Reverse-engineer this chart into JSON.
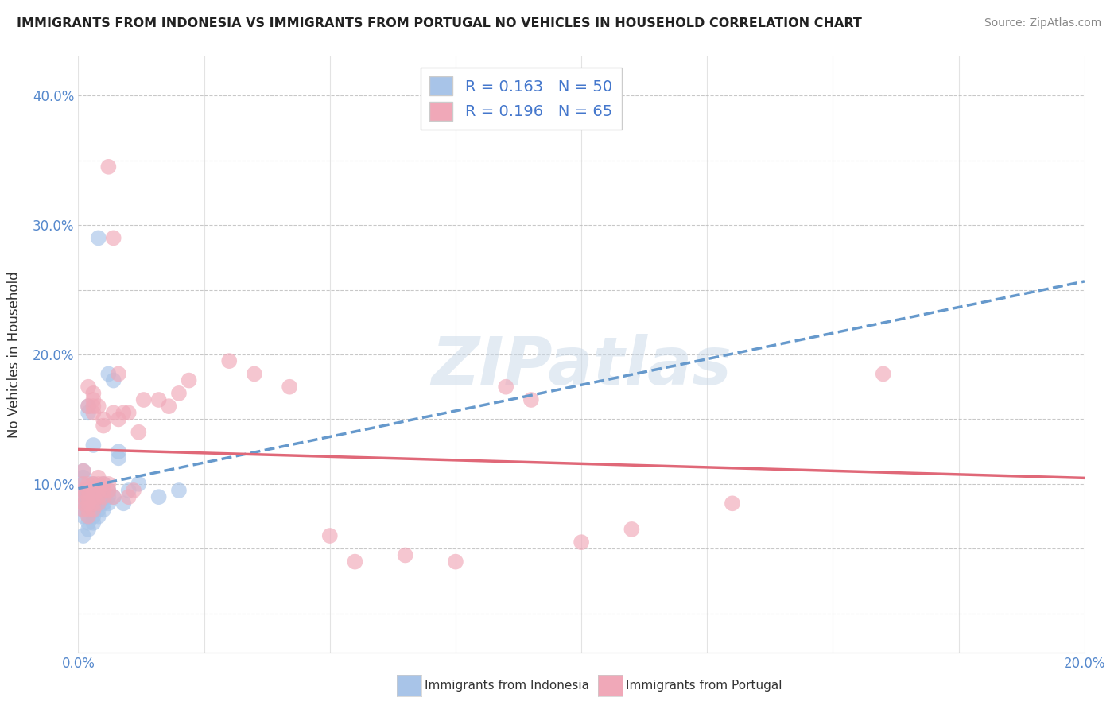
{
  "title": "IMMIGRANTS FROM INDONESIA VS IMMIGRANTS FROM PORTUGAL NO VEHICLES IN HOUSEHOLD CORRELATION CHART",
  "source": "Source: ZipAtlas.com",
  "ylabel": "No Vehicles in Household",
  "xlim": [
    0.0,
    0.2
  ],
  "ylim": [
    -0.03,
    0.43
  ],
  "indonesia_color": "#a8c4e8",
  "portugal_color": "#f0a8b8",
  "indonesia_line_color": "#6699cc",
  "portugal_line_color": "#e06878",
  "indonesia_R": 0.163,
  "indonesia_N": 50,
  "portugal_R": 0.196,
  "portugal_N": 65,
  "legend_label_indonesia": "Immigrants from Indonesia",
  "legend_label_portugal": "Immigrants from Portugal",
  "background_color": "#ffffff",
  "indonesia_scatter": [
    [
      0.001,
      0.06
    ],
    [
      0.001,
      0.075
    ],
    [
      0.001,
      0.08
    ],
    [
      0.001,
      0.085
    ],
    [
      0.001,
      0.09
    ],
    [
      0.001,
      0.095
    ],
    [
      0.001,
      0.1
    ],
    [
      0.001,
      0.105
    ],
    [
      0.001,
      0.11
    ],
    [
      0.002,
      0.065
    ],
    [
      0.002,
      0.07
    ],
    [
      0.002,
      0.075
    ],
    [
      0.002,
      0.08
    ],
    [
      0.002,
      0.085
    ],
    [
      0.002,
      0.09
    ],
    [
      0.002,
      0.095
    ],
    [
      0.002,
      0.155
    ],
    [
      0.002,
      0.16
    ],
    [
      0.003,
      0.07
    ],
    [
      0.003,
      0.075
    ],
    [
      0.003,
      0.08
    ],
    [
      0.003,
      0.085
    ],
    [
      0.003,
      0.09
    ],
    [
      0.003,
      0.095
    ],
    [
      0.003,
      0.1
    ],
    [
      0.003,
      0.13
    ],
    [
      0.004,
      0.075
    ],
    [
      0.004,
      0.08
    ],
    [
      0.004,
      0.085
    ],
    [
      0.004,
      0.09
    ],
    [
      0.004,
      0.095
    ],
    [
      0.004,
      0.29
    ],
    [
      0.005,
      0.08
    ],
    [
      0.005,
      0.085
    ],
    [
      0.005,
      0.09
    ],
    [
      0.005,
      0.095
    ],
    [
      0.005,
      0.1
    ],
    [
      0.006,
      0.085
    ],
    [
      0.006,
      0.09
    ],
    [
      0.006,
      0.095
    ],
    [
      0.006,
      0.185
    ],
    [
      0.007,
      0.09
    ],
    [
      0.007,
      0.18
    ],
    [
      0.008,
      0.12
    ],
    [
      0.008,
      0.125
    ],
    [
      0.009,
      0.085
    ],
    [
      0.01,
      0.095
    ],
    [
      0.012,
      0.1
    ],
    [
      0.016,
      0.09
    ],
    [
      0.02,
      0.095
    ]
  ],
  "portugal_scatter": [
    [
      0.001,
      0.08
    ],
    [
      0.001,
      0.085
    ],
    [
      0.001,
      0.09
    ],
    [
      0.001,
      0.095
    ],
    [
      0.001,
      0.1
    ],
    [
      0.001,
      0.11
    ],
    [
      0.002,
      0.075
    ],
    [
      0.002,
      0.08
    ],
    [
      0.002,
      0.085
    ],
    [
      0.002,
      0.09
    ],
    [
      0.002,
      0.095
    ],
    [
      0.002,
      0.1
    ],
    [
      0.002,
      0.16
    ],
    [
      0.002,
      0.175
    ],
    [
      0.003,
      0.08
    ],
    [
      0.003,
      0.085
    ],
    [
      0.003,
      0.09
    ],
    [
      0.003,
      0.095
    ],
    [
      0.003,
      0.1
    ],
    [
      0.003,
      0.155
    ],
    [
      0.003,
      0.16
    ],
    [
      0.003,
      0.165
    ],
    [
      0.003,
      0.17
    ],
    [
      0.004,
      0.085
    ],
    [
      0.004,
      0.09
    ],
    [
      0.004,
      0.095
    ],
    [
      0.004,
      0.1
    ],
    [
      0.004,
      0.105
    ],
    [
      0.004,
      0.16
    ],
    [
      0.005,
      0.09
    ],
    [
      0.005,
      0.095
    ],
    [
      0.005,
      0.1
    ],
    [
      0.005,
      0.145
    ],
    [
      0.005,
      0.15
    ],
    [
      0.006,
      0.095
    ],
    [
      0.006,
      0.1
    ],
    [
      0.006,
      0.345
    ],
    [
      0.007,
      0.09
    ],
    [
      0.007,
      0.155
    ],
    [
      0.007,
      0.29
    ],
    [
      0.008,
      0.15
    ],
    [
      0.008,
      0.185
    ],
    [
      0.009,
      0.155
    ],
    [
      0.01,
      0.09
    ],
    [
      0.01,
      0.155
    ],
    [
      0.011,
      0.095
    ],
    [
      0.012,
      0.14
    ],
    [
      0.013,
      0.165
    ],
    [
      0.016,
      0.165
    ],
    [
      0.018,
      0.16
    ],
    [
      0.02,
      0.17
    ],
    [
      0.022,
      0.18
    ],
    [
      0.03,
      0.195
    ],
    [
      0.035,
      0.185
    ],
    [
      0.042,
      0.175
    ],
    [
      0.05,
      0.06
    ],
    [
      0.055,
      0.04
    ],
    [
      0.065,
      0.045
    ],
    [
      0.075,
      0.04
    ],
    [
      0.085,
      0.175
    ],
    [
      0.09,
      0.165
    ],
    [
      0.1,
      0.055
    ],
    [
      0.11,
      0.065
    ],
    [
      0.13,
      0.085
    ],
    [
      0.16,
      0.185
    ]
  ]
}
